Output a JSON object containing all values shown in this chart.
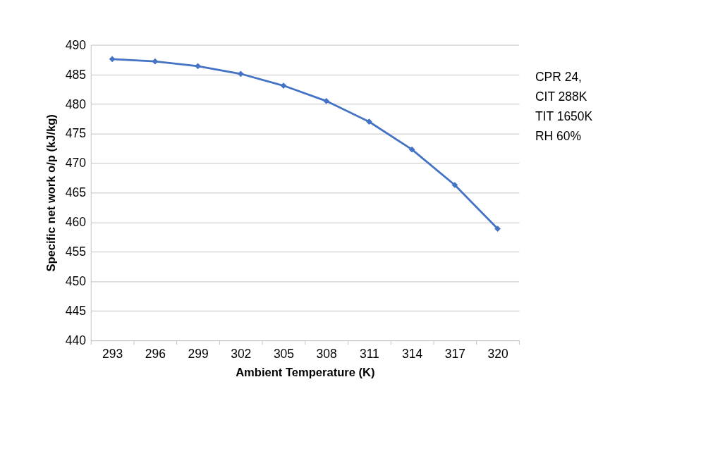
{
  "chart_data": {
    "type": "line",
    "xlabel": "Ambient Temperature (K)",
    "ylabel": "Specific net work o/p (kJ/kg)",
    "categories": [
      "293",
      "296",
      "299",
      "302",
      "305",
      "308",
      "311",
      "314",
      "317",
      "320"
    ],
    "series": [
      {
        "color": "#4472c4",
        "values": [
          487.6,
          487.2,
          486.4,
          485.1,
          483.1,
          480.5,
          477.0,
          472.3,
          466.3,
          458.9
        ]
      }
    ],
    "ylim": [
      440,
      490
    ],
    "yticks": [
      440,
      445,
      450,
      455,
      460,
      465,
      470,
      475,
      480,
      485,
      490
    ],
    "grid": "y",
    "marker": "diamond",
    "line_style": "solid",
    "annotations": [
      "CPR 24,",
      "CIT  288K",
      "TIT  1650K",
      "RH 60%"
    ]
  }
}
